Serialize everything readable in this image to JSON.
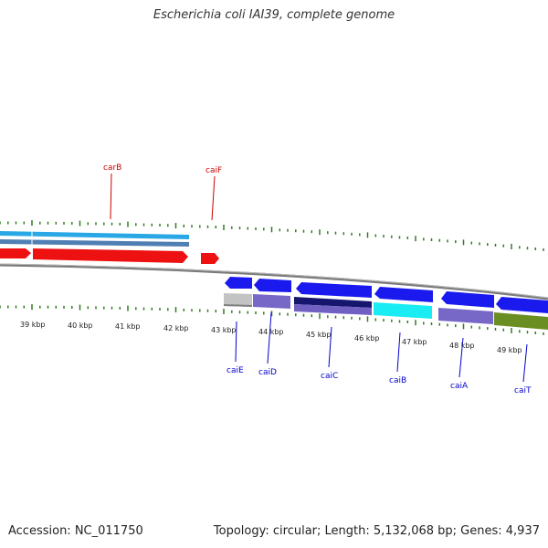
{
  "title": "Escherichia coli IAI39, complete genome",
  "footer": {
    "accession": "Accession: NC_011750",
    "summary": "Topology: circular; Length: 5,132,068 bp; Genes: 4,937"
  },
  "scale_labels": [
    "39 kbp",
    "40 kbp",
    "41 kbp",
    "42 kbp",
    "43 kbp",
    "44 kbp",
    "45 kbp",
    "46 kbp",
    "47 kbp",
    "48 kbp",
    "49 kbp"
  ],
  "genes_forward": [
    {
      "name": "carB",
      "color": "#cc0000"
    },
    {
      "name": "caiF",
      "color": "#cc0000"
    }
  ],
  "genes_reverse": [
    {
      "name": "caiE",
      "color": "#0000cc"
    },
    {
      "name": "caiD",
      "color": "#0000cc"
    },
    {
      "name": "caiC",
      "color": "#0000cc"
    },
    {
      "name": "caiB",
      "color": "#0000cc"
    },
    {
      "name": "caiA",
      "color": "#0000cc"
    },
    {
      "name": "caiT",
      "color": "#0000cc"
    }
  ],
  "colors": {
    "forward_cds": "#ee1111",
    "reverse_cds": "#1a1aee",
    "tick": "#2e7d1e",
    "backbone": "#888888"
  }
}
